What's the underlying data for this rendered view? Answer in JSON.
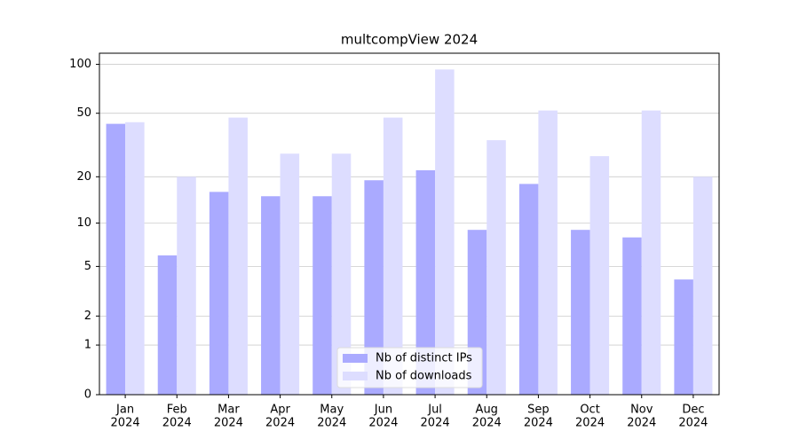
{
  "chart_data": {
    "type": "bar",
    "title": "multcompView 2024",
    "categories": [
      [
        "Jan",
        "2024"
      ],
      [
        "Feb",
        "2024"
      ],
      [
        "Mar",
        "2024"
      ],
      [
        "Apr",
        "2024"
      ],
      [
        "May",
        "2024"
      ],
      [
        "Jun",
        "2024"
      ],
      [
        "Jul",
        "2024"
      ],
      [
        "Aug",
        "2024"
      ],
      [
        "Sep",
        "2024"
      ],
      [
        "Oct",
        "2024"
      ],
      [
        "Nov",
        "2024"
      ],
      [
        "Dec",
        "2024"
      ]
    ],
    "series": [
      {
        "name": "Nb of distinct IPs",
        "color": "#aaaaff",
        "values": [
          43,
          6,
          16,
          15,
          15,
          19,
          22,
          9,
          18,
          9,
          8,
          4
        ]
      },
      {
        "name": "Nb of downloads",
        "color": "#ddddff",
        "values": [
          44,
          20,
          47,
          28,
          28,
          47,
          93,
          34,
          52,
          27,
          52,
          20
        ]
      }
    ],
    "yscale": "log1p",
    "ylim": [
      0,
      117
    ],
    "yticks": [
      0,
      1,
      2,
      5,
      10,
      20,
      50,
      100
    ],
    "grid": true,
    "legend": "lower center"
  }
}
